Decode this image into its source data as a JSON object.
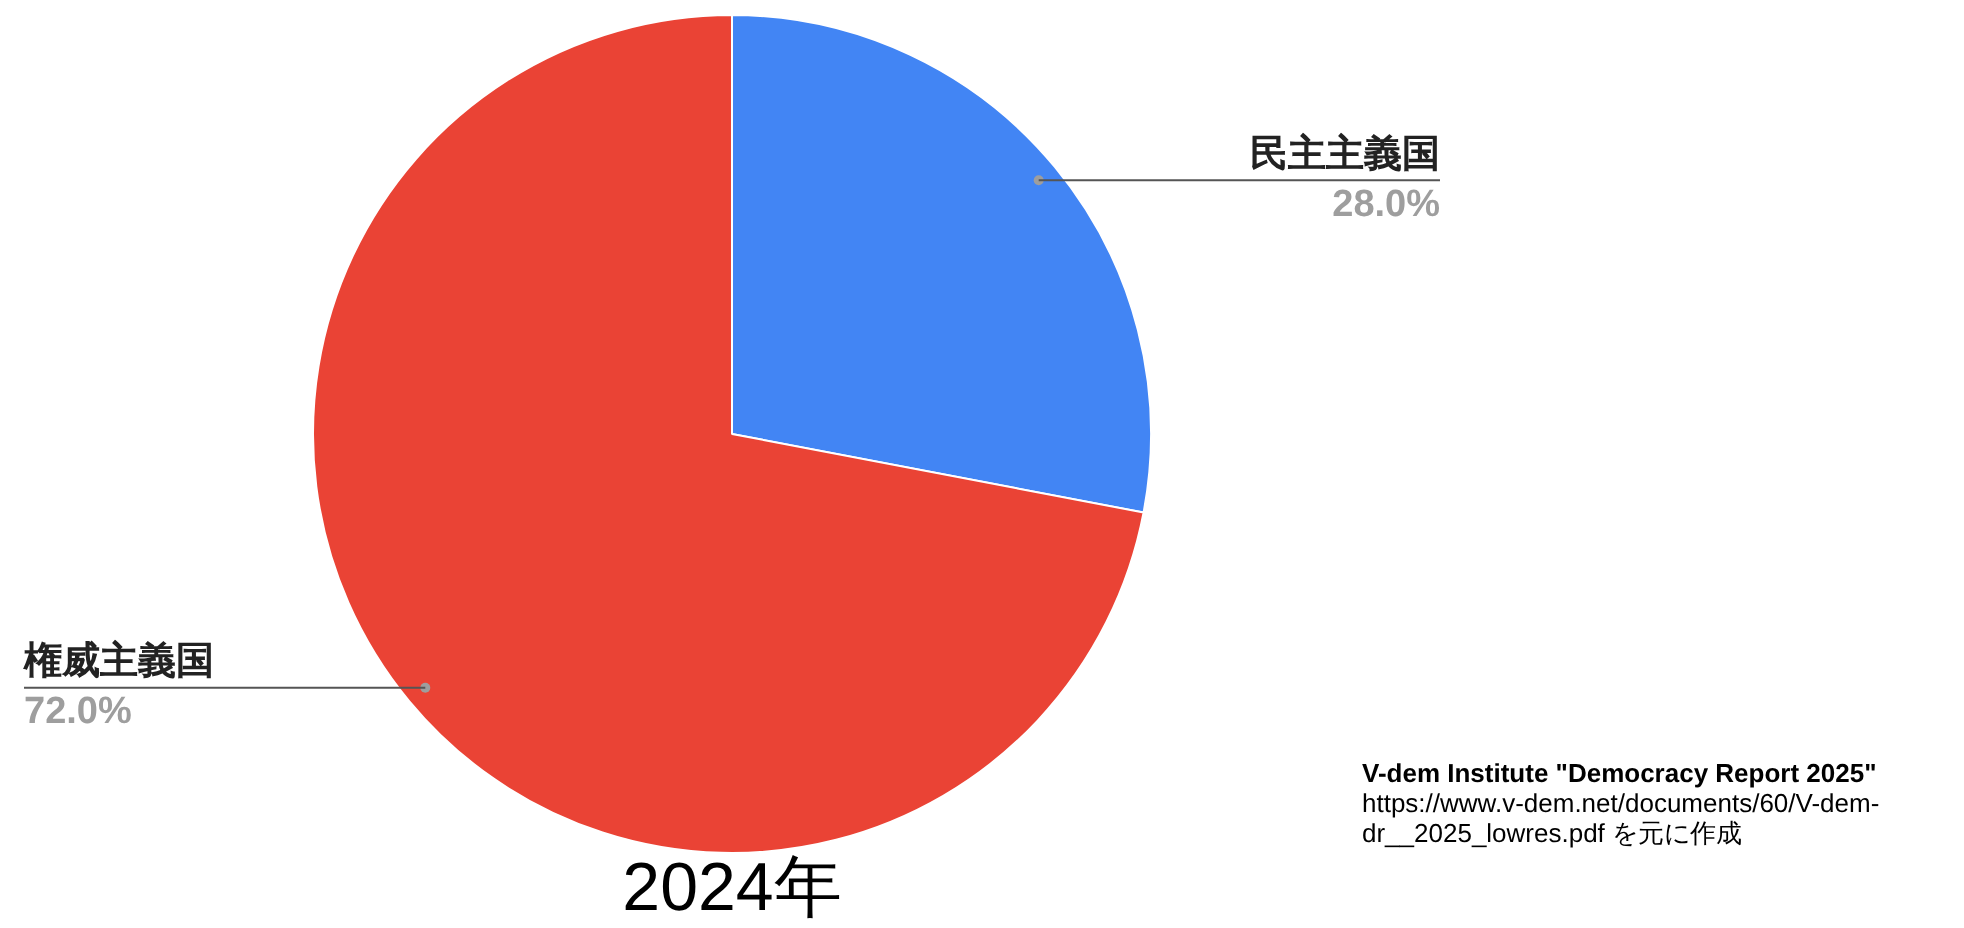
{
  "chart_data": {
    "type": "pie",
    "title": "2024年",
    "categories": [
      "民主主義国",
      "権威主義国"
    ],
    "values": [
      28,
      72
    ],
    "colors": [
      "#4285f4",
      "#ea4335"
    ],
    "value_labels": [
      "28.0%",
      "72.0%"
    ],
    "legend": false,
    "annotations": [
      "V-dem Institute \"Democracy Report 2025\"",
      "https://www.v-dem.net/documents/60/V-dem-dr__2025_lowres.pdf を元に作成"
    ]
  }
}
